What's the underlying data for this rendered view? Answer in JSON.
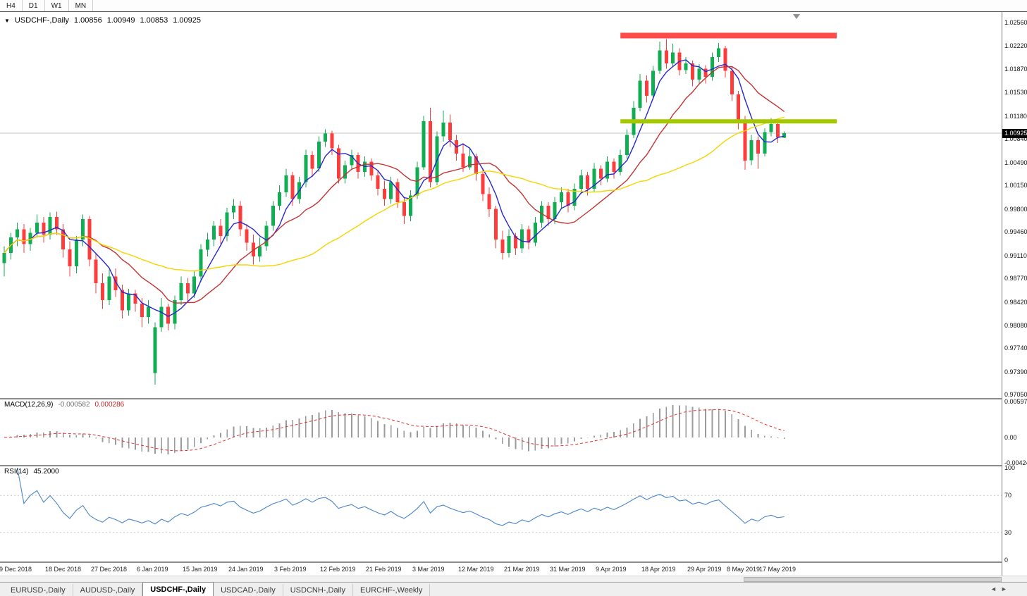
{
  "timeframe_buttons": [
    "H4",
    "D1",
    "W1",
    "MN"
  ],
  "chart": {
    "title": {
      "symbol": "USDCHF-,Daily",
      "open": "1.00856",
      "high": "1.00949",
      "low": "1.00853",
      "close": "1.00925"
    },
    "price_axis_ticks": [
      "1.02560",
      "1.02220",
      "1.01870",
      "1.01530",
      "1.01180",
      "1.00840",
      "1.00490",
      "1.00150",
      "0.99800",
      "0.99460",
      "0.99110",
      "0.98770",
      "0.98420",
      "0.98080",
      "0.97740",
      "0.97390",
      "0.97050"
    ],
    "current_price_tag": "1.00925"
  },
  "macd_panel": {
    "label": "MACD(12,26,9)",
    "macd_value": "-0.000582",
    "signal_value": "0.000286",
    "axis_ticks": [
      "0.00597",
      "0.00",
      "-0.00424"
    ]
  },
  "rsi_panel": {
    "label": "RSI(14)",
    "value": "45.2000",
    "axis_ticks": [
      "100",
      "70",
      "30",
      "0"
    ],
    "levels": [
      70,
      30
    ]
  },
  "date_axis": {
    "labels": [
      {
        "index": 2,
        "text": "9 Dec 2018"
      },
      {
        "index": 9,
        "text": "18 Dec 2018"
      },
      {
        "index": 16,
        "text": "27 Dec 2018"
      },
      {
        "index": 23,
        "text": "6 Jan 2019"
      },
      {
        "index": 30,
        "text": "15 Jan 2019"
      },
      {
        "index": 37,
        "text": "24 Jan 2019"
      },
      {
        "index": 44,
        "text": "3 Feb 2019"
      },
      {
        "index": 51,
        "text": "12 Feb 2019"
      },
      {
        "index": 58,
        "text": "21 Feb 2019"
      },
      {
        "index": 65,
        "text": "3 Mar 2019"
      },
      {
        "index": 72,
        "text": "12 Mar 2019"
      },
      {
        "index": 79,
        "text": "21 Mar 2019"
      },
      {
        "index": 86,
        "text": "31 Mar 2019"
      },
      {
        "index": 93,
        "text": "9 Apr 2019"
      },
      {
        "index": 100,
        "text": "18 Apr 2019"
      },
      {
        "index": 107,
        "text": "29 Apr 2019"
      },
      {
        "index": 113,
        "text": "8 May 2019"
      },
      {
        "index": 118,
        "text": "17 May 2019"
      }
    ]
  },
  "tabs": {
    "items": [
      "EURUSD-,Daily",
      "AUDUSD-,Daily",
      "USDCHF-,Daily",
      "USDCAD-,Daily",
      "USDCNH-,Daily",
      "EURCHF-,Weekly"
    ],
    "active": "USDCHF-,Daily"
  },
  "colors": {
    "bull": "#10ad52",
    "bear": "#fd3c3c",
    "ma_fast": "#2626cf",
    "ma_medium": "#c23434",
    "ma_slow": "#f5d400",
    "resistance": "#ff4a4a",
    "support": "#a3c800",
    "macd_hist": "#9a9a9a",
    "macd_signal": "#e03232",
    "rsi_line": "#4985c9",
    "price_line": "#c6c6c6",
    "tag_bg": "#000000",
    "tag_text": "#ffffff"
  },
  "chart_data": {
    "type": "candlestick",
    "symbol": "USDCHF",
    "timeframe": "Daily",
    "last_ohlc": {
      "open": 1.00856,
      "high": 1.00949,
      "low": 1.00853,
      "close": 1.00925
    },
    "price_range": {
      "top": 1.0272,
      "bottom": 0.97
    },
    "candles": [
      [
        0.99,
        0.9925,
        0.988,
        0.9915
      ],
      [
        0.9915,
        0.9945,
        0.9905,
        0.9938
      ],
      [
        0.9938,
        0.996,
        0.9925,
        0.995
      ],
      [
        0.995,
        0.9958,
        0.9915,
        0.9928
      ],
      [
        0.9928,
        0.9952,
        0.9918,
        0.9945
      ],
      [
        0.9945,
        0.9972,
        0.9938,
        0.996
      ],
      [
        0.996,
        0.9968,
        0.993,
        0.9942
      ],
      [
        0.9942,
        0.9975,
        0.9935,
        0.9968
      ],
      [
        0.9968,
        0.9976,
        0.9942,
        0.995
      ],
      [
        0.995,
        0.9958,
        0.9908,
        0.992
      ],
      [
        0.992,
        0.9932,
        0.988,
        0.9895
      ],
      [
        0.9895,
        0.994,
        0.9885,
        0.9935
      ],
      [
        0.9935,
        0.9972,
        0.9925,
        0.9965
      ],
      [
        0.9965,
        0.997,
        0.9895,
        0.9905
      ],
      [
        0.9905,
        0.9915,
        0.9855,
        0.987
      ],
      [
        0.987,
        0.9885,
        0.9832,
        0.9845
      ],
      [
        0.9845,
        0.989,
        0.9838,
        0.988
      ],
      [
        0.988,
        0.9892,
        0.985,
        0.986
      ],
      [
        0.986,
        0.9868,
        0.9818,
        0.983
      ],
      [
        0.983,
        0.9862,
        0.9822,
        0.9855
      ],
      [
        0.9855,
        0.986,
        0.9828,
        0.984
      ],
      [
        0.984,
        0.9848,
        0.9805,
        0.982
      ],
      [
        0.982,
        0.9845,
        0.981,
        0.9835
      ],
      [
        0.9737,
        0.9812,
        0.972,
        0.9805
      ],
      [
        0.9805,
        0.9848,
        0.9798,
        0.9835
      ],
      [
        0.9835,
        0.984,
        0.98,
        0.981
      ],
      [
        0.981,
        0.9852,
        0.9802,
        0.9845
      ],
      [
        0.9845,
        0.988,
        0.9838,
        0.987
      ],
      [
        0.987,
        0.9878,
        0.9842,
        0.9855
      ],
      [
        0.9855,
        0.9888,
        0.9848,
        0.988
      ],
      [
        0.988,
        0.9928,
        0.9872,
        0.992
      ],
      [
        0.992,
        0.9945,
        0.991,
        0.9935
      ],
      [
        0.9935,
        0.9962,
        0.9925,
        0.9955
      ],
      [
        0.9955,
        0.9965,
        0.9928,
        0.994
      ],
      [
        0.994,
        0.9982,
        0.9932,
        0.9975
      ],
      [
        0.9975,
        0.9995,
        0.9965,
        0.9985
      ],
      [
        0.9985,
        0.9992,
        0.994,
        0.995
      ],
      [
        0.995,
        0.9958,
        0.9918,
        0.993
      ],
      [
        0.993,
        0.9942,
        0.9898,
        0.991
      ],
      [
        0.991,
        0.9938,
        0.9902,
        0.9925
      ],
      [
        0.9925,
        0.9962,
        0.9918,
        0.9955
      ],
      [
        0.9955,
        0.9992,
        0.9948,
        0.9985
      ],
      [
        0.9985,
        1.0015,
        0.9978,
        1.0005
      ],
      [
        1.0005,
        1.004,
        0.9998,
        1.003
      ],
      [
        1.003,
        1.0035,
        0.9985,
        0.9995
      ],
      [
        0.9995,
        1.0028,
        0.9988,
        1.002
      ],
      [
        1.002,
        1.0068,
        1.0012,
        1.006
      ],
      [
        1.006,
        1.0066,
        1.0028,
        1.004
      ],
      [
        1.004,
        1.0088,
        1.0035,
        1.008
      ],
      [
        1.008,
        1.0098,
        1.0072,
        1.0092
      ],
      [
        1.0092,
        1.0096,
        1.006,
        1.007
      ],
      [
        1.007,
        1.0075,
        1.0018,
        1.0025
      ],
      [
        1.0025,
        1.0052,
        1.0018,
        1.0045
      ],
      [
        1.0045,
        1.0068,
        1.0038,
        1.006
      ],
      [
        1.006,
        1.0064,
        1.0025,
        1.0035
      ],
      [
        1.0035,
        1.0058,
        1.0028,
        1.005
      ],
      [
        1.005,
        1.0055,
        1.0022,
        1.003
      ],
      [
        1.003,
        1.0038,
        1.0,
        1.001
      ],
      [
        1.001,
        1.0022,
        0.9985,
        0.9995
      ],
      [
        0.9995,
        1.0028,
        0.9988,
        1.002
      ],
      [
        1.002,
        1.0025,
        0.9982,
        0.999
      ],
      [
        0.999,
        0.9998,
        0.9958,
        0.997
      ],
      [
        0.997,
        1.0008,
        0.9962,
        1.0
      ],
      [
        1.0,
        1.005,
        0.9995,
        1.0042
      ],
      [
        1.0042,
        1.0118,
        1.0038,
        1.011
      ],
      [
        1.011,
        1.013,
        1.0012,
        1.002
      ],
      [
        1.002,
        1.0095,
        1.0015,
        1.0088
      ],
      [
        1.0088,
        1.0126,
        1.008,
        1.0108
      ],
      [
        1.0108,
        1.012,
        1.0072,
        1.0082
      ],
      [
        1.0082,
        1.009,
        1.0052,
        1.0062
      ],
      [
        1.0062,
        1.0078,
        1.0035,
        1.0042
      ],
      [
        1.0042,
        1.007,
        1.0038,
        1.0058
      ],
      [
        1.0058,
        1.0062,
        1.0022,
        1.0032
      ],
      [
        1.0032,
        1.004,
        0.9992,
        1.0002
      ],
      [
        1.0002,
        1.0012,
        0.9968,
        0.998
      ],
      [
        0.998,
        0.9985,
        0.9922,
        0.9935
      ],
      [
        0.9935,
        0.9948,
        0.9905,
        0.9915
      ],
      [
        0.9915,
        0.995,
        0.9908,
        0.994
      ],
      [
        0.994,
        0.9945,
        0.9912,
        0.9922
      ],
      [
        0.9922,
        0.9958,
        0.9915,
        0.995
      ],
      [
        0.995,
        0.9955,
        0.992,
        0.993
      ],
      [
        0.993,
        0.9968,
        0.9925,
        0.996
      ],
      [
        0.996,
        0.9992,
        0.9952,
        0.9985
      ],
      [
        0.9985,
        0.999,
        0.9955,
        0.9965
      ],
      [
        0.9965,
        0.9998,
        0.9958,
        0.999
      ],
      [
        0.999,
        1.0012,
        0.9982,
        1.0005
      ],
      [
        1.0005,
        1.001,
        0.9975,
        0.9985
      ],
      [
        0.9985,
        1.0018,
        0.9978,
        1.001
      ],
      [
        1.001,
        1.0038,
        1.0002,
        1.003
      ],
      [
        1.003,
        1.0035,
        1.0,
        1.001
      ],
      [
        1.001,
        1.0048,
        1.0005,
        1.004
      ],
      [
        1.004,
        1.0045,
        1.0015,
        1.0025
      ],
      [
        1.0025,
        1.0058,
        1.002,
        1.005
      ],
      [
        1.005,
        1.0055,
        1.0025,
        1.0035
      ],
      [
        1.0035,
        1.0068,
        1.003,
        1.006
      ],
      [
        1.006,
        1.0098,
        1.0055,
        1.009
      ],
      [
        1.009,
        1.014,
        1.0085,
        1.013
      ],
      [
        1.013,
        1.018,
        1.0125,
        1.017
      ],
      [
        1.017,
        1.0178,
        1.0138,
        1.0148
      ],
      [
        1.0148,
        1.0192,
        1.0142,
        1.0185
      ],
      [
        1.0185,
        1.0228,
        1.018,
        1.0215
      ],
      [
        1.0215,
        1.0232,
        1.0188,
        1.0196
      ],
      [
        1.0196,
        1.0225,
        1.019,
        1.0212
      ],
      [
        1.0212,
        1.0218,
        1.0178,
        1.0186
      ],
      [
        1.0186,
        1.0205,
        1.018,
        1.0196
      ],
      [
        1.0196,
        1.02,
        1.0162,
        1.0172
      ],
      [
        1.0172,
        1.0195,
        1.0165,
        1.0188
      ],
      [
        1.0188,
        1.0193,
        1.0166,
        1.0176
      ],
      [
        1.0176,
        1.0212,
        1.017,
        1.0205
      ],
      [
        1.0205,
        1.0226,
        1.0198,
        1.0218
      ],
      [
        1.0218,
        1.0222,
        1.0175,
        1.0185
      ],
      [
        1.0185,
        1.019,
        1.014,
        1.015
      ],
      [
        1.015,
        1.0155,
        1.0098,
        1.0108
      ],
      [
        1.0108,
        1.0118,
        1.0038,
        1.0052
      ],
      [
        1.0052,
        1.009,
        1.0045,
        1.0082
      ],
      [
        1.0082,
        1.0088,
        1.004,
        1.0062
      ],
      [
        1.0062,
        1.01,
        1.0058,
        1.0094
      ],
      [
        1.0094,
        1.0115,
        1.0088,
        1.0106
      ],
      [
        1.0106,
        1.0112,
        1.0078,
        1.0086
      ],
      [
        1.00856,
        1.00949,
        1.00853,
        1.00925
      ]
    ],
    "overlays": {
      "moving_averages": [
        {
          "period": 5,
          "color_key": "ma_fast"
        },
        {
          "period": 13,
          "color_key": "ma_medium"
        },
        {
          "period": 34,
          "color_key": "ma_slow"
        }
      ],
      "lines": [
        {
          "name": "resistance",
          "price": 1.0237,
          "from_index": 94,
          "to_index": 127,
          "color_key": "resistance",
          "width": 8
        },
        {
          "name": "support",
          "price": 1.011,
          "from_index": 94,
          "to_index": 127,
          "color_key": "support",
          "width": 6
        }
      ]
    },
    "indicators": [
      {
        "type": "macd",
        "params": [
          12,
          26,
          9
        ],
        "current": {
          "macd": -0.000582,
          "signal": 0.000286
        },
        "range": {
          "max": 0.00597,
          "min": -0.00424
        }
      },
      {
        "type": "rsi",
        "params": [
          14
        ],
        "current": 45.2,
        "range": {
          "max": 100,
          "min": 0
        },
        "levels": [
          70,
          30
        ]
      }
    ]
  }
}
